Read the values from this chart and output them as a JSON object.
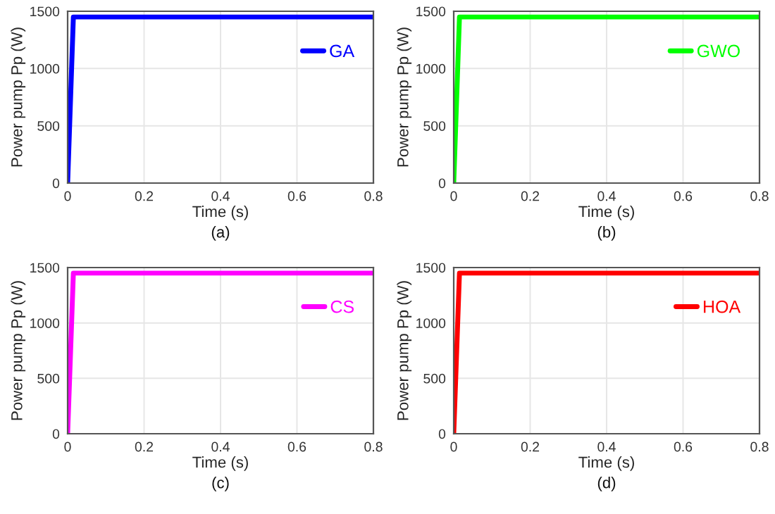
{
  "chart_data": [
    {
      "type": "line",
      "xlabel": "Time (s)",
      "ylabel": "Power pump Pp (W)",
      "annotations": [
        "(a)"
      ],
      "x": [
        0,
        0.015,
        0.8
      ],
      "xlim": [
        0,
        0.8
      ],
      "ylim": [
        0,
        1500
      ],
      "xticks": [
        0,
        0.2,
        0.4,
        0.6,
        0.8
      ],
      "yticks": [
        0,
        500,
        1000,
        1500
      ],
      "grid": true,
      "legend": "top right",
      "series": [
        {
          "name": "GA",
          "color": "#0000ff",
          "values": [
            0,
            1450,
            1450
          ]
        }
      ]
    },
    {
      "type": "line",
      "xlabel": "Time (s)",
      "ylabel": "Power pump Pp (W)",
      "annotations": [
        "(b)"
      ],
      "x": [
        0,
        0.015,
        0.8
      ],
      "xlim": [
        0,
        0.8
      ],
      "ylim": [
        0,
        1500
      ],
      "xticks": [
        0,
        0.2,
        0.4,
        0.6,
        0.8
      ],
      "yticks": [
        0,
        500,
        1000,
        1500
      ],
      "grid": true,
      "legend": "top right",
      "series": [
        {
          "name": "GWO",
          "color": "#00ff00",
          "values": [
            0,
            1450,
            1450
          ]
        }
      ]
    },
    {
      "type": "line",
      "xlabel": "Time (s)",
      "ylabel": "Power pump Pp (W)",
      "annotations": [
        "(c)"
      ],
      "x": [
        0,
        0.015,
        0.8
      ],
      "xlim": [
        0,
        0.8
      ],
      "ylim": [
        0,
        1500
      ],
      "xticks": [
        0,
        0.2,
        0.4,
        0.6,
        0.8
      ],
      "yticks": [
        0,
        500,
        1000,
        1500
      ],
      "grid": true,
      "legend": "top right",
      "series": [
        {
          "name": "CS",
          "color": "#ff00ff",
          "values": [
            0,
            1450,
            1450
          ]
        }
      ]
    },
    {
      "type": "line",
      "xlabel": "Time (s)",
      "ylabel": "Power pump Pp (W)",
      "annotations": [
        "(d)"
      ],
      "x": [
        0,
        0.015,
        0.8
      ],
      "xlim": [
        0,
        0.8
      ],
      "ylim": [
        0,
        1500
      ],
      "xticks": [
        0,
        0.2,
        0.4,
        0.6,
        0.8
      ],
      "yticks": [
        0,
        500,
        1000,
        1500
      ],
      "grid": true,
      "legend": "top right",
      "series": [
        {
          "name": "HOA",
          "color": "#ff0000",
          "values": [
            0,
            1450,
            1450
          ]
        }
      ]
    }
  ]
}
